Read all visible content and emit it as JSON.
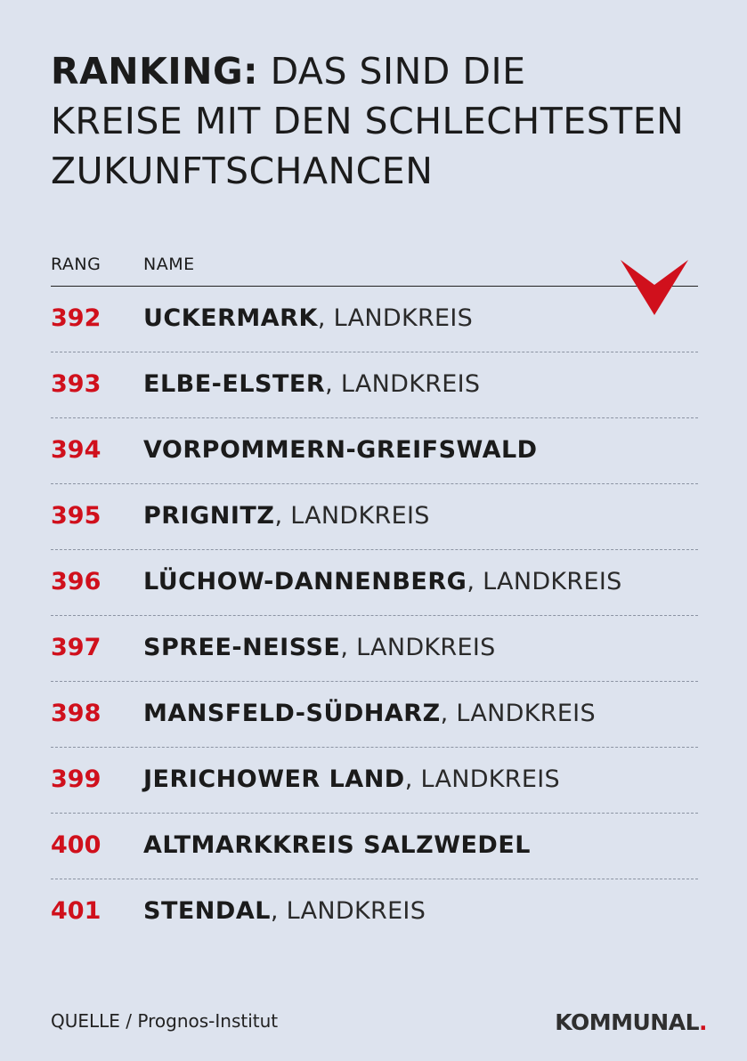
{
  "title": {
    "bold": "RANKING:",
    "line1_rest": "DAS SIND DIE",
    "line2": "KREISE MIT DEN SCHLECHTESTEN",
    "line3": "ZUKUNFTSCHANCEN"
  },
  "table": {
    "headers": {
      "rank": "RANG",
      "name": "NAME"
    },
    "rows": [
      {
        "rank": "392",
        "name": "UCKERMARK",
        "suffix": ", LANDKREIS"
      },
      {
        "rank": "393",
        "name": "ELBE-ELSTER",
        "suffix": ", LANDKREIS"
      },
      {
        "rank": "394",
        "name": "VORPOMMERN-GREIFSWALD",
        "suffix": ""
      },
      {
        "rank": "395",
        "name": "PRIGNITZ",
        "suffix": ", LANDKREIS"
      },
      {
        "rank": "396",
        "name": "LÜCHOW-DANNENBERG",
        "suffix": ", LANDKREIS"
      },
      {
        "rank": "397",
        "name": "SPREE-NEISSE",
        "suffix": ", LANDKREIS"
      },
      {
        "rank": "398",
        "name": "MANSFELD-SÜDHARZ",
        "suffix": ", LANDKREIS"
      },
      {
        "rank": "399",
        "name": "JERICHOWER LAND",
        "suffix": ", LANDKREIS"
      },
      {
        "rank": "400",
        "name": "ALTMARKKREIS SALZWEDEL",
        "suffix": ""
      },
      {
        "rank": "401",
        "name": "STENDAL",
        "suffix": ", LANDKREIS"
      }
    ]
  },
  "source": "QUELLE / Prognos-Institut",
  "logo": {
    "text": "KOMMUNAL",
    "dot": "."
  },
  "icons": {
    "arrow": "down-arrow-icon"
  },
  "colors": {
    "accent": "#d0101c",
    "background": "#dde3ee"
  }
}
